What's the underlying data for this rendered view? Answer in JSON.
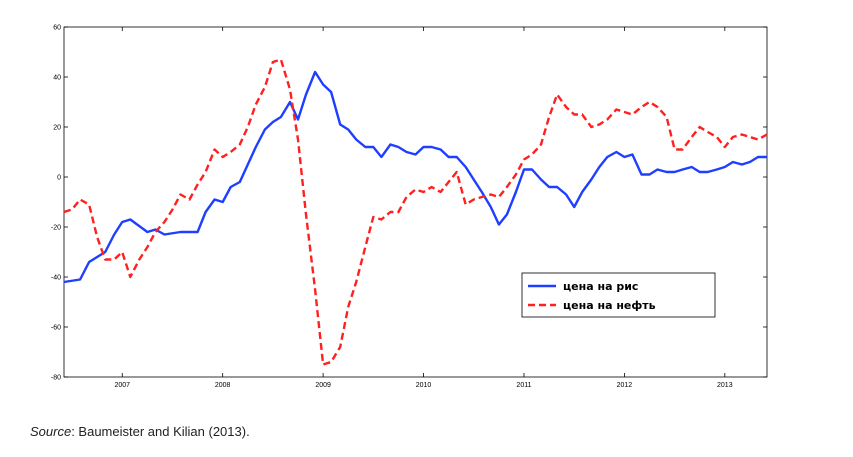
{
  "chart_data": {
    "type": "line",
    "title": "",
    "xlabel": "",
    "ylabel": "",
    "xlim": [
      2006.42,
      2013.42
    ],
    "ylim": [
      -80,
      60
    ],
    "yticks": [
      -80,
      -60,
      -40,
      -20,
      0,
      20,
      40,
      60
    ],
    "xticks": [
      2007,
      2008,
      2009,
      2010,
      2011,
      2012,
      2013
    ],
    "grid": false,
    "legend_position": "lower-right",
    "series": [
      {
        "name": "цена на рис",
        "color": "#1f3fff",
        "style": "solid",
        "points": [
          [
            2006.42,
            -42
          ],
          [
            2006.58,
            -41
          ],
          [
            2006.67,
            -34
          ],
          [
            2006.83,
            -30
          ],
          [
            2006.92,
            -23
          ],
          [
            2007.0,
            -18
          ],
          [
            2007.08,
            -17
          ],
          [
            2007.25,
            -22
          ],
          [
            2007.33,
            -21
          ],
          [
            2007.42,
            -23
          ],
          [
            2007.58,
            -22
          ],
          [
            2007.75,
            -22
          ],
          [
            2007.83,
            -14
          ],
          [
            2007.92,
            -9
          ],
          [
            2008.0,
            -10
          ],
          [
            2008.08,
            -4
          ],
          [
            2008.17,
            -2
          ],
          [
            2008.25,
            5
          ],
          [
            2008.33,
            12
          ],
          [
            2008.42,
            19
          ],
          [
            2008.5,
            22
          ],
          [
            2008.58,
            24
          ],
          [
            2008.67,
            30
          ],
          [
            2008.75,
            23
          ],
          [
            2008.83,
            33
          ],
          [
            2008.92,
            42
          ],
          [
            2009.0,
            37
          ],
          [
            2009.08,
            34
          ],
          [
            2009.17,
            21
          ],
          [
            2009.25,
            19
          ],
          [
            2009.33,
            15
          ],
          [
            2009.42,
            12
          ],
          [
            2009.5,
            12
          ],
          [
            2009.58,
            8
          ],
          [
            2009.67,
            13
          ],
          [
            2009.75,
            12
          ],
          [
            2009.83,
            10
          ],
          [
            2009.92,
            9
          ],
          [
            2010.0,
            12
          ],
          [
            2010.08,
            12
          ],
          [
            2010.17,
            11
          ],
          [
            2010.25,
            8
          ],
          [
            2010.33,
            8
          ],
          [
            2010.42,
            4
          ],
          [
            2010.5,
            -1
          ],
          [
            2010.58,
            -6
          ],
          [
            2010.67,
            -12
          ],
          [
            2010.75,
            -19
          ],
          [
            2010.83,
            -15
          ],
          [
            2010.92,
            -6
          ],
          [
            2011.0,
            3
          ],
          [
            2011.08,
            3
          ],
          [
            2011.17,
            -1
          ],
          [
            2011.25,
            -4
          ],
          [
            2011.33,
            -4
          ],
          [
            2011.42,
            -7
          ],
          [
            2011.5,
            -12
          ],
          [
            2011.58,
            -6
          ],
          [
            2011.67,
            -1
          ],
          [
            2011.75,
            4
          ],
          [
            2011.83,
            8
          ],
          [
            2011.92,
            10
          ],
          [
            2012.0,
            8
          ],
          [
            2012.08,
            9
          ],
          [
            2012.17,
            1
          ],
          [
            2012.25,
            1
          ],
          [
            2012.33,
            3
          ],
          [
            2012.42,
            2
          ],
          [
            2012.5,
            2
          ],
          [
            2012.58,
            3
          ],
          [
            2012.67,
            4
          ],
          [
            2012.75,
            2
          ],
          [
            2012.83,
            2
          ],
          [
            2012.92,
            3
          ],
          [
            2013.0,
            4
          ],
          [
            2013.08,
            6
          ],
          [
            2013.17,
            5
          ],
          [
            2013.25,
            6
          ],
          [
            2013.33,
            8
          ],
          [
            2013.42,
            8
          ]
        ]
      },
      {
        "name": "цена на нефть",
        "color": "#ff2020",
        "style": "dashed",
        "points": [
          [
            2006.42,
            -14
          ],
          [
            2006.5,
            -13
          ],
          [
            2006.58,
            -9
          ],
          [
            2006.67,
            -11
          ],
          [
            2006.75,
            -24
          ],
          [
            2006.83,
            -33
          ],
          [
            2006.92,
            -33
          ],
          [
            2007.0,
            -30
          ],
          [
            2007.08,
            -40
          ],
          [
            2007.17,
            -33
          ],
          [
            2007.25,
            -28
          ],
          [
            2007.33,
            -22
          ],
          [
            2007.42,
            -18
          ],
          [
            2007.5,
            -13
          ],
          [
            2007.58,
            -7
          ],
          [
            2007.67,
            -9
          ],
          [
            2007.75,
            -3
          ],
          [
            2007.83,
            2
          ],
          [
            2007.92,
            11
          ],
          [
            2008.0,
            8
          ],
          [
            2008.08,
            10
          ],
          [
            2008.17,
            13
          ],
          [
            2008.25,
            20
          ],
          [
            2008.33,
            29
          ],
          [
            2008.42,
            36
          ],
          [
            2008.5,
            46
          ],
          [
            2008.58,
            47
          ],
          [
            2008.67,
            35
          ],
          [
            2008.75,
            15
          ],
          [
            2008.83,
            -15
          ],
          [
            2008.92,
            -45
          ],
          [
            2009.0,
            -75
          ],
          [
            2009.08,
            -74
          ],
          [
            2009.17,
            -68
          ],
          [
            2009.25,
            -52
          ],
          [
            2009.33,
            -42
          ],
          [
            2009.42,
            -28
          ],
          [
            2009.5,
            -16
          ],
          [
            2009.58,
            -17
          ],
          [
            2009.67,
            -14
          ],
          [
            2009.75,
            -14
          ],
          [
            2009.83,
            -8
          ],
          [
            2009.92,
            -5
          ],
          [
            2010.0,
            -6
          ],
          [
            2010.08,
            -4
          ],
          [
            2010.17,
            -6
          ],
          [
            2010.25,
            -2
          ],
          [
            2010.33,
            2
          ],
          [
            2010.42,
            -11
          ],
          [
            2010.5,
            -9
          ],
          [
            2010.58,
            -8
          ],
          [
            2010.67,
            -7
          ],
          [
            2010.75,
            -8
          ],
          [
            2010.83,
            -4
          ],
          [
            2010.92,
            1
          ],
          [
            2011.0,
            7
          ],
          [
            2011.08,
            9
          ],
          [
            2011.17,
            13
          ],
          [
            2011.25,
            24
          ],
          [
            2011.33,
            33
          ],
          [
            2011.42,
            28
          ],
          [
            2011.5,
            25
          ],
          [
            2011.58,
            25
          ],
          [
            2011.67,
            20
          ],
          [
            2011.75,
            21
          ],
          [
            2011.83,
            23
          ],
          [
            2011.92,
            27
          ],
          [
            2012.0,
            26
          ],
          [
            2012.08,
            25
          ],
          [
            2012.17,
            28
          ],
          [
            2012.25,
            30
          ],
          [
            2012.33,
            28
          ],
          [
            2012.42,
            24
          ],
          [
            2012.5,
            11
          ],
          [
            2012.58,
            11
          ],
          [
            2012.67,
            16
          ],
          [
            2012.75,
            20
          ],
          [
            2012.83,
            18
          ],
          [
            2012.92,
            16
          ],
          [
            2013.0,
            12
          ],
          [
            2013.08,
            16
          ],
          [
            2013.17,
            17
          ],
          [
            2013.25,
            16
          ],
          [
            2013.33,
            15
          ],
          [
            2013.42,
            17
          ]
        ]
      }
    ]
  },
  "caption": {
    "source_label": "Source",
    "source_text": ": Baumeister and Kilian (2013)."
  }
}
